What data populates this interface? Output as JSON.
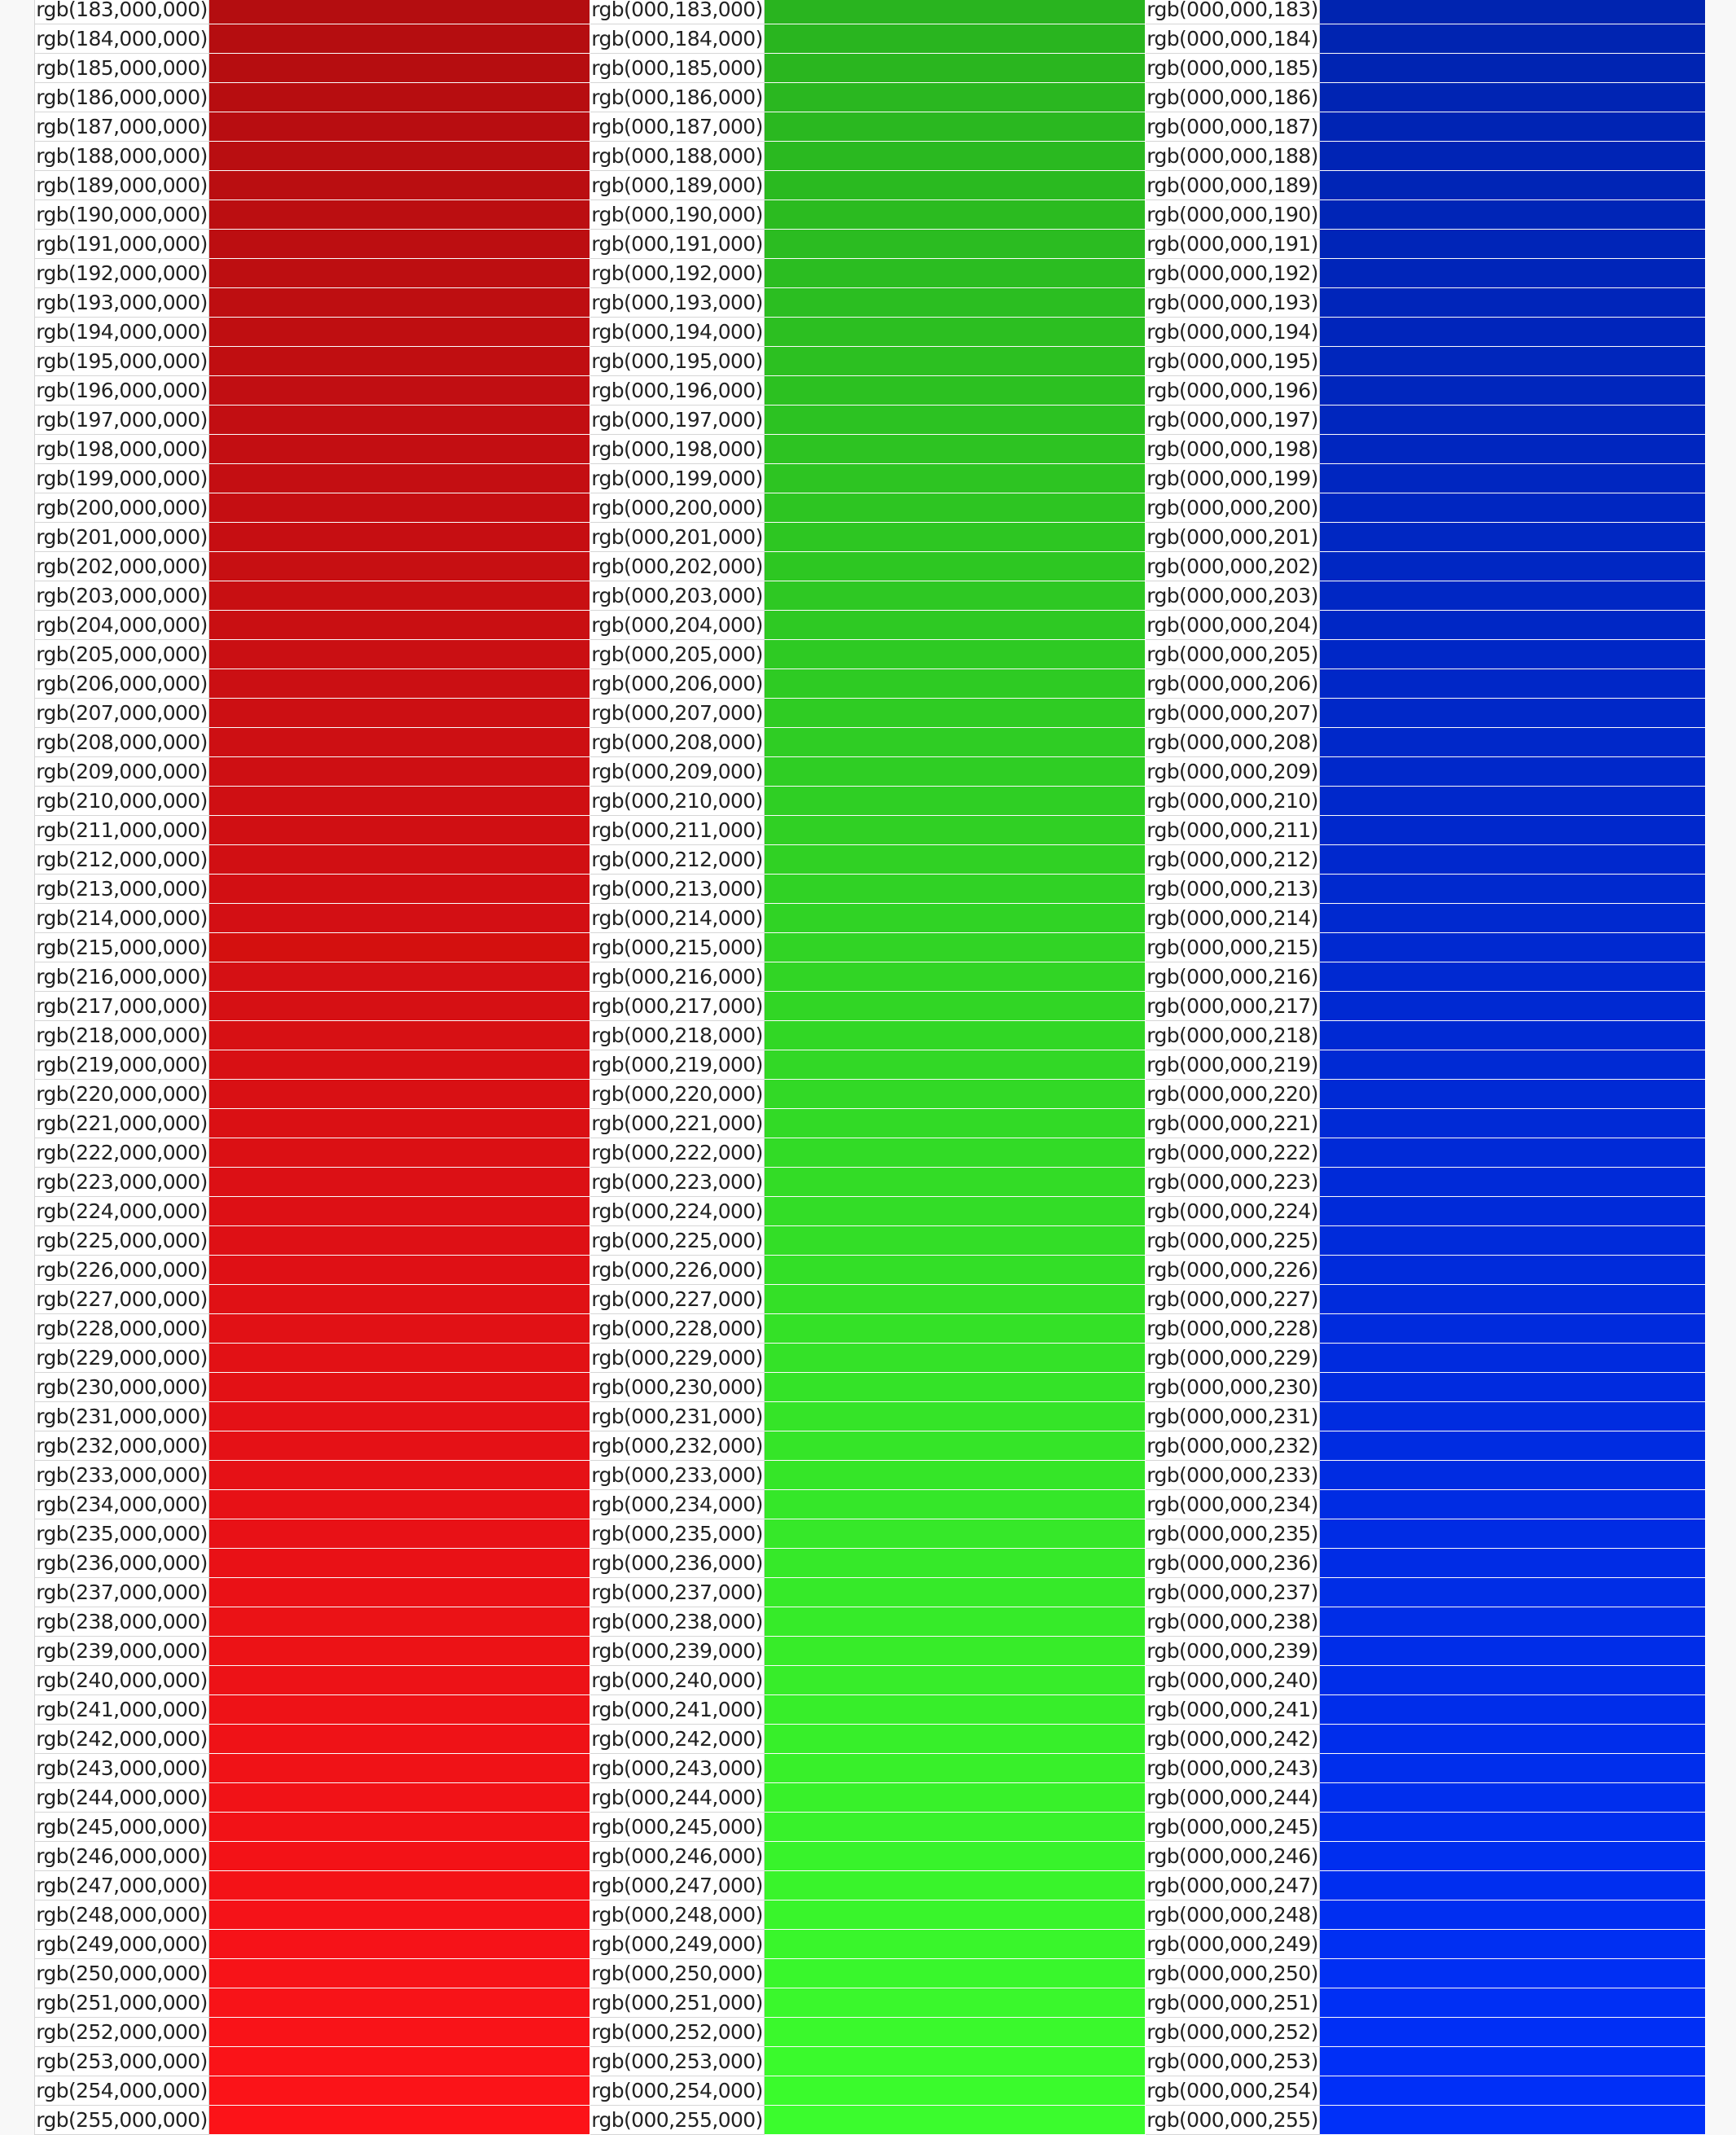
{
  "columns": [
    {
      "channel": "red",
      "prefix": "rgb(",
      "fmt": "%,000,000)"
    },
    {
      "channel": "green",
      "prefix": "rgb(000,",
      "fmt": ",000)"
    },
    {
      "channel": "blue",
      "prefix": "rgb(000,000,",
      "fmt": ")"
    }
  ],
  "channel_values": [
    183,
    184,
    185,
    186,
    187,
    188,
    189,
    190,
    191,
    192,
    193,
    194,
    195,
    196,
    197,
    198,
    199,
    200,
    201,
    202,
    203,
    204,
    205,
    206,
    207,
    208,
    209,
    210,
    211,
    212,
    213,
    214,
    215,
    216,
    217,
    218,
    219,
    220,
    221,
    222,
    223,
    224,
    225,
    226,
    227,
    228,
    229,
    230,
    231,
    232,
    233,
    234,
    235,
    236,
    237,
    238,
    239,
    240,
    241,
    242,
    243,
    244,
    245,
    246,
    247,
    248,
    249,
    250,
    251,
    252,
    253,
    254,
    255
  ],
  "rows": [
    {
      "red": "rgb(183,000,000)",
      "green": "rgb(000,183,000)",
      "blue": "rgb(000,000,183)",
      "red_fill": "#b40d10",
      "green_fill": "#29b41f",
      "blue_fill": "#0024b0"
    },
    {
      "red": "rgb(184,000,000)",
      "green": "rgb(000,184,000)",
      "blue": "rgb(000,000,184)",
      "red_fill": "#b50d10",
      "green_fill": "#29b51f",
      "blue_fill": "#0024b1"
    },
    {
      "red": "rgb(185,000,000)",
      "green": "rgb(000,185,000)",
      "blue": "rgb(000,000,185)",
      "red_fill": "#b60d10",
      "green_fill": "#2ab61f",
      "blue_fill": "#0024b2"
    },
    {
      "red": "rgb(186,000,000)",
      "green": "rgb(000,186,000)",
      "blue": "rgb(000,000,186)",
      "red_fill": "#b70d10",
      "green_fill": "#2ab720",
      "blue_fill": "#0024b3"
    },
    {
      "red": "rgb(187,000,000)",
      "green": "rgb(000,187,000)",
      "blue": "rgb(000,000,187)",
      "red_fill": "#b80d11",
      "green_fill": "#2ab820",
      "blue_fill": "#0024b4"
    },
    {
      "red": "rgb(188,000,000)",
      "green": "rgb(000,188,000)",
      "blue": "rgb(000,000,188)",
      "red_fill": "#b90e11",
      "green_fill": "#2ab920",
      "blue_fill": "#0024b5"
    },
    {
      "red": "rgb(189,000,000)",
      "green": "rgb(000,189,000)",
      "blue": "rgb(000,000,189)",
      "red_fill": "#ba0e11",
      "green_fill": "#2aba20",
      "blue_fill": "#0025b6"
    },
    {
      "red": "rgb(190,000,000)",
      "green": "rgb(000,190,000)",
      "blue": "rgb(000,000,190)",
      "red_fill": "#bb0e11",
      "green_fill": "#2bbb20",
      "blue_fill": "#0025b7"
    },
    {
      "red": "rgb(191,000,000)",
      "green": "rgb(000,191,000)",
      "blue": "rgb(000,000,191)",
      "red_fill": "#bc0e11",
      "green_fill": "#2bbc21",
      "blue_fill": "#0025b8"
    },
    {
      "red": "rgb(192,000,000)",
      "green": "rgb(000,192,000)",
      "blue": "rgb(000,000,192)",
      "red_fill": "#bd0e11",
      "green_fill": "#2bbd21",
      "blue_fill": "#0025b9"
    },
    {
      "red": "rgb(193,000,000)",
      "green": "rgb(000,193,000)",
      "blue": "rgb(000,000,193)",
      "red_fill": "#be0e11",
      "green_fill": "#2bbe21",
      "blue_fill": "#0025ba"
    },
    {
      "red": "rgb(194,000,000)",
      "green": "rgb(000,194,000)",
      "blue": "rgb(000,000,194)",
      "red_fill": "#bf0e11",
      "green_fill": "#2cbf21",
      "blue_fill": "#0025bb"
    },
    {
      "red": "rgb(195,000,000)",
      "green": "rgb(000,195,000)",
      "blue": "rgb(000,000,195)",
      "red_fill": "#c00e11",
      "green_fill": "#2cc021",
      "blue_fill": "#0026bc"
    },
    {
      "red": "rgb(196,000,000)",
      "green": "rgb(000,196,000)",
      "blue": "rgb(000,000,196)",
      "red_fill": "#c10e12",
      "green_fill": "#2cc121",
      "blue_fill": "#0026bd"
    },
    {
      "red": "rgb(197,000,000)",
      "green": "rgb(000,197,000)",
      "blue": "rgb(000,000,197)",
      "red_fill": "#c20e12",
      "green_fill": "#2cc222",
      "blue_fill": "#0026be"
    },
    {
      "red": "rgb(198,000,000)",
      "green": "rgb(000,198,000)",
      "blue": "rgb(000,000,198)",
      "red_fill": "#c30e12",
      "green_fill": "#2dc322",
      "blue_fill": "#0026bf"
    },
    {
      "red": "rgb(199,000,000)",
      "green": "rgb(000,199,000)",
      "blue": "rgb(000,000,199)",
      "red_fill": "#c40e12",
      "green_fill": "#2dc422",
      "blue_fill": "#0026c0"
    },
    {
      "red": "rgb(200,000,000)",
      "green": "rgb(000,200,000)",
      "blue": "rgb(000,000,200)",
      "red_fill": "#c50e12",
      "green_fill": "#2dc522",
      "blue_fill": "#0026c1"
    },
    {
      "red": "rgb(201,000,000)",
      "green": "rgb(000,201,000)",
      "blue": "rgb(000,000,201)",
      "red_fill": "#c60e12",
      "green_fill": "#2dc622",
      "blue_fill": "#0027c2"
    },
    {
      "red": "rgb(202,000,000)",
      "green": "rgb(000,202,000)",
      "blue": "rgb(000,000,202)",
      "red_fill": "#c70f12",
      "green_fill": "#2dc722",
      "blue_fill": "#0027c3"
    },
    {
      "red": "rgb(203,000,000)",
      "green": "rgb(000,203,000)",
      "blue": "rgb(000,000,203)",
      "red_fill": "#c80f12",
      "green_fill": "#2ec823",
      "blue_fill": "#0027c4"
    },
    {
      "red": "rgb(204,000,000)",
      "green": "rgb(000,204,000)",
      "blue": "rgb(000,000,204)",
      "red_fill": "#c90f12",
      "green_fill": "#2ec923",
      "blue_fill": "#0027c5"
    },
    {
      "red": "rgb(205,000,000)",
      "green": "rgb(000,205,000)",
      "blue": "rgb(000,000,205)",
      "red_fill": "#ca0f13",
      "green_fill": "#2eca23",
      "blue_fill": "#0027c6"
    },
    {
      "red": "rgb(206,000,000)",
      "green": "rgb(000,206,000)",
      "blue": "rgb(000,000,206)",
      "red_fill": "#cb0f13",
      "green_fill": "#2ecb23",
      "blue_fill": "#0027c7"
    },
    {
      "red": "rgb(207,000,000)",
      "green": "rgb(000,207,000)",
      "blue": "rgb(000,000,207)",
      "red_fill": "#cc0f13",
      "green_fill": "#2fcc23",
      "blue_fill": "#0028c8"
    },
    {
      "red": "rgb(208,000,000)",
      "green": "rgb(000,208,000)",
      "blue": "rgb(000,000,208)",
      "red_fill": "#cd0f13",
      "green_fill": "#2fcd24",
      "blue_fill": "#0028c9"
    },
    {
      "red": "rgb(209,000,000)",
      "green": "rgb(000,209,000)",
      "blue": "rgb(000,000,209)",
      "red_fill": "#ce0f13",
      "green_fill": "#2fce24",
      "blue_fill": "#0028ca"
    },
    {
      "red": "rgb(210,000,000)",
      "green": "rgb(000,210,000)",
      "blue": "rgb(000,000,210)",
      "red_fill": "#cf0f13",
      "green_fill": "#2fcf24",
      "blue_fill": "#0028cb"
    },
    {
      "red": "rgb(211,000,000)",
      "green": "rgb(000,211,000)",
      "blue": "rgb(000,000,211)",
      "red_fill": "#d00f13",
      "green_fill": "#30d024",
      "blue_fill": "#0028cc"
    },
    {
      "red": "rgb(212,000,000)",
      "green": "rgb(000,212,000)",
      "blue": "rgb(000,000,212)",
      "red_fill": "#d10f13",
      "green_fill": "#30d124",
      "blue_fill": "#0028cd"
    },
    {
      "red": "rgb(213,000,000)",
      "green": "rgb(000,213,000)",
      "blue": "rgb(000,000,213)",
      "red_fill": "#d20f13",
      "green_fill": "#30d225",
      "blue_fill": "#0029ce"
    },
    {
      "red": "rgb(214,000,000)",
      "green": "rgb(000,214,000)",
      "blue": "rgb(000,000,214)",
      "red_fill": "#d30f14",
      "green_fill": "#30d325",
      "blue_fill": "#0029cf"
    },
    {
      "red": "rgb(215,000,000)",
      "green": "rgb(000,215,000)",
      "blue": "rgb(000,000,215)",
      "red_fill": "#d4100f",
      "green_fill": "#31d425",
      "blue_fill": "#0029d0"
    },
    {
      "red": "rgb(216,000,000)",
      "green": "rgb(000,216,000)",
      "blue": "rgb(000,000,216)",
      "red_fill": "#d51014",
      "green_fill": "#31d525",
      "blue_fill": "#0029d1"
    },
    {
      "red": "rgb(217,000,000)",
      "green": "rgb(000,217,000)",
      "blue": "rgb(000,000,217)",
      "red_fill": "#d61014",
      "green_fill": "#31d625",
      "blue_fill": "#0029d2"
    },
    {
      "red": "rgb(218,000,000)",
      "green": "rgb(000,218,000)",
      "blue": "rgb(000,000,218)",
      "red_fill": "#d71014",
      "green_fill": "#31d725",
      "blue_fill": "#0029d3"
    },
    {
      "red": "rgb(219,000,000)",
      "green": "rgb(000,219,000)",
      "blue": "rgb(000,000,219)",
      "red_fill": "#d81014",
      "green_fill": "#32d826",
      "blue_fill": "#002ad4"
    },
    {
      "red": "rgb(220,000,000)",
      "green": "rgb(000,220,000)",
      "blue": "rgb(000,000,220)",
      "red_fill": "#d91014",
      "green_fill": "#32d926",
      "blue_fill": "#002ad5"
    },
    {
      "red": "rgb(221,000,000)",
      "green": "rgb(000,221,000)",
      "blue": "rgb(000,000,221)",
      "red_fill": "#da1014",
      "green_fill": "#32da26",
      "blue_fill": "#002ad6"
    },
    {
      "red": "rgb(222,000,000)",
      "green": "rgb(000,222,000)",
      "blue": "rgb(000,000,222)",
      "red_fill": "#db1014",
      "green_fill": "#32db26",
      "blue_fill": "#002ad7"
    },
    {
      "red": "rgb(223,000,000)",
      "green": "rgb(000,223,000)",
      "blue": "rgb(000,000,223)",
      "red_fill": "#dc1015",
      "green_fill": "#33dc26",
      "blue_fill": "#002ad8"
    },
    {
      "red": "rgb(224,000,000)",
      "green": "rgb(000,224,000)",
      "blue": "rgb(000,000,224)",
      "red_fill": "#dd1015",
      "green_fill": "#33dd27",
      "blue_fill": "#002ad9"
    },
    {
      "red": "rgb(225,000,000)",
      "green": "rgb(000,225,000)",
      "blue": "rgb(000,000,225)",
      "red_fill": "#de1015",
      "green_fill": "#33de27",
      "blue_fill": "#002bda"
    },
    {
      "red": "rgb(226,000,000)",
      "green": "rgb(000,226,000)",
      "blue": "rgb(000,000,226)",
      "red_fill": "#df1015",
      "green_fill": "#33df27",
      "blue_fill": "#002bdb"
    },
    {
      "red": "rgb(227,000,000)",
      "green": "rgb(000,227,000)",
      "blue": "rgb(000,000,227)",
      "red_fill": "#e01115",
      "green_fill": "#34e027",
      "blue_fill": "#002bdc"
    },
    {
      "red": "rgb(228,000,000)",
      "green": "rgb(000,228,000)",
      "blue": "rgb(000,000,228)",
      "red_fill": "#e11115",
      "green_fill": "#34e127",
      "blue_fill": "#002bdd"
    },
    {
      "red": "rgb(229,000,000)",
      "green": "rgb(000,229,000)",
      "blue": "rgb(000,000,229)",
      "red_fill": "#e21115",
      "green_fill": "#34e228",
      "blue_fill": "#002bde"
    },
    {
      "red": "rgb(230,000,000)",
      "green": "rgb(000,230,000)",
      "blue": "rgb(000,000,230)",
      "red_fill": "#e31115",
      "green_fill": "#34e328",
      "blue_fill": "#002bdf"
    },
    {
      "red": "rgb(231,000,000)",
      "green": "rgb(000,231,000)",
      "blue": "rgb(000,000,231)",
      "red_fill": "#e41116",
      "green_fill": "#35e428",
      "blue_fill": "#002ce0"
    },
    {
      "red": "rgb(232,000,000)",
      "green": "rgb(000,232,000)",
      "blue": "rgb(000,000,232)",
      "red_fill": "#e51116",
      "green_fill": "#35e528",
      "blue_fill": "#002ce1"
    },
    {
      "red": "rgb(233,000,000)",
      "green": "rgb(000,233,000)",
      "blue": "rgb(000,000,233)",
      "red_fill": "#e61116",
      "green_fill": "#35e628",
      "blue_fill": "#002ce2"
    },
    {
      "red": "rgb(234,000,000)",
      "green": "rgb(000,234,000)",
      "blue": "rgb(000,000,234)",
      "red_fill": "#e71116",
      "green_fill": "#35e729",
      "blue_fill": "#002ce3"
    },
    {
      "red": "rgb(235,000,000)",
      "green": "rgb(000,235,000)",
      "blue": "rgb(000,000,235)",
      "red_fill": "#e81116",
      "green_fill": "#36e829",
      "blue_fill": "#002ce4"
    },
    {
      "red": "rgb(236,000,000)",
      "green": "rgb(000,236,000)",
      "blue": "rgb(000,000,236)",
      "red_fill": "#e91116",
      "green_fill": "#36e929",
      "blue_fill": "#002ce5"
    },
    {
      "red": "rgb(237,000,000)",
      "green": "rgb(000,237,000)",
      "blue": "rgb(000,000,237)",
      "red_fill": "#ea1116",
      "green_fill": "#36ea29",
      "blue_fill": "#002de6"
    },
    {
      "red": "rgb(238,000,000)",
      "green": "rgb(000,238,000)",
      "blue": "rgb(000,000,238)",
      "red_fill": "#eb1216",
      "green_fill": "#36eb29",
      "blue_fill": "#002de7"
    },
    {
      "red": "rgb(239,000,000)",
      "green": "rgb(000,239,000)",
      "blue": "rgb(000,000,239)",
      "red_fill": "#ec1216",
      "green_fill": "#37ec29",
      "blue_fill": "#002de8"
    },
    {
      "red": "rgb(240,000,000)",
      "green": "rgb(000,240,000)",
      "blue": "rgb(000,000,240)",
      "red_fill": "#ed1217",
      "green_fill": "#37ed2a",
      "blue_fill": "#002de9"
    },
    {
      "red": "rgb(241,000,000)",
      "green": "rgb(000,241,000)",
      "blue": "rgb(000,000,241)",
      "red_fill": "#ee1217",
      "green_fill": "#37ee2a",
      "blue_fill": "#002dea"
    },
    {
      "red": "rgb(242,000,000)",
      "green": "rgb(000,242,000)",
      "blue": "rgb(000,000,242)",
      "red_fill": "#ef1217",
      "green_fill": "#37ef2a",
      "blue_fill": "#002deb"
    },
    {
      "red": "rgb(243,000,000)",
      "green": "rgb(000,243,000)",
      "blue": "rgb(000,000,243)",
      "red_fill": "#f01217",
      "green_fill": "#38f02a",
      "blue_fill": "#002eec"
    },
    {
      "red": "rgb(244,000,000)",
      "green": "rgb(000,244,000)",
      "blue": "rgb(000,000,244)",
      "red_fill": "#f11217",
      "green_fill": "#38f12a",
      "blue_fill": "#002eed"
    },
    {
      "red": "rgb(245,000,000)",
      "green": "rgb(000,245,000)",
      "blue": "rgb(000,000,245)",
      "red_fill": "#f21217",
      "green_fill": "#38f22b",
      "blue_fill": "#002eee"
    },
    {
      "red": "rgb(246,000,000)",
      "green": "rgb(000,246,000)",
      "blue": "rgb(000,000,246)",
      "red_fill": "#f31217",
      "green_fill": "#38f32b",
      "blue_fill": "#002eef"
    },
    {
      "red": "rgb(247,000,000)",
      "green": "rgb(000,247,000)",
      "blue": "rgb(000,000,247)",
      "red_fill": "#f41217",
      "green_fill": "#39f42b",
      "blue_fill": "#002ef0"
    },
    {
      "red": "rgb(248,000,000)",
      "green": "rgb(000,248,000)",
      "blue": "rgb(000,000,248)",
      "red_fill": "#f51218",
      "green_fill": "#39f52b",
      "blue_fill": "#002ef1"
    },
    {
      "red": "rgb(249,000,000)",
      "green": "rgb(000,249,000)",
      "blue": "rgb(000,000,249)",
      "red_fill": "#f61218",
      "green_fill": "#39f62b",
      "blue_fill": "#002ff2"
    },
    {
      "red": "rgb(250,000,000)",
      "green": "rgb(000,250,000)",
      "blue": "rgb(000,000,250)",
      "red_fill": "#f71318",
      "green_fill": "#39f72c",
      "blue_fill": "#002ff3"
    },
    {
      "red": "rgb(251,000,000)",
      "green": "rgb(000,251,000)",
      "blue": "rgb(000,000,251)",
      "red_fill": "#f81318",
      "green_fill": "#3af82c",
      "blue_fill": "#002ff4"
    },
    {
      "red": "rgb(252,000,000)",
      "green": "rgb(000,252,000)",
      "blue": "rgb(000,000,252)",
      "red_fill": "#f91318",
      "green_fill": "#3af92c",
      "blue_fill": "#002ff5"
    },
    {
      "red": "rgb(253,000,000)",
      "green": "rgb(000,253,000)",
      "blue": "rgb(000,000,253)",
      "red_fill": "#fa1318",
      "green_fill": "#3afa2c",
      "blue_fill": "#002ff6"
    },
    {
      "red": "rgb(254,000,000)",
      "green": "rgb(000,254,000)",
      "blue": "rgb(000,000,254)",
      "red_fill": "#fb1318",
      "green_fill": "#3afb2c",
      "blue_fill": "#002ff7"
    },
    {
      "red": "rgb(255,000,000)",
      "green": "rgb(000,255,000)",
      "blue": "rgb(000,000,255)",
      "red_fill": "#fc1318",
      "green_fill": "#3bfc2d",
      "blue_fill": "#0030f8"
    }
  ]
}
